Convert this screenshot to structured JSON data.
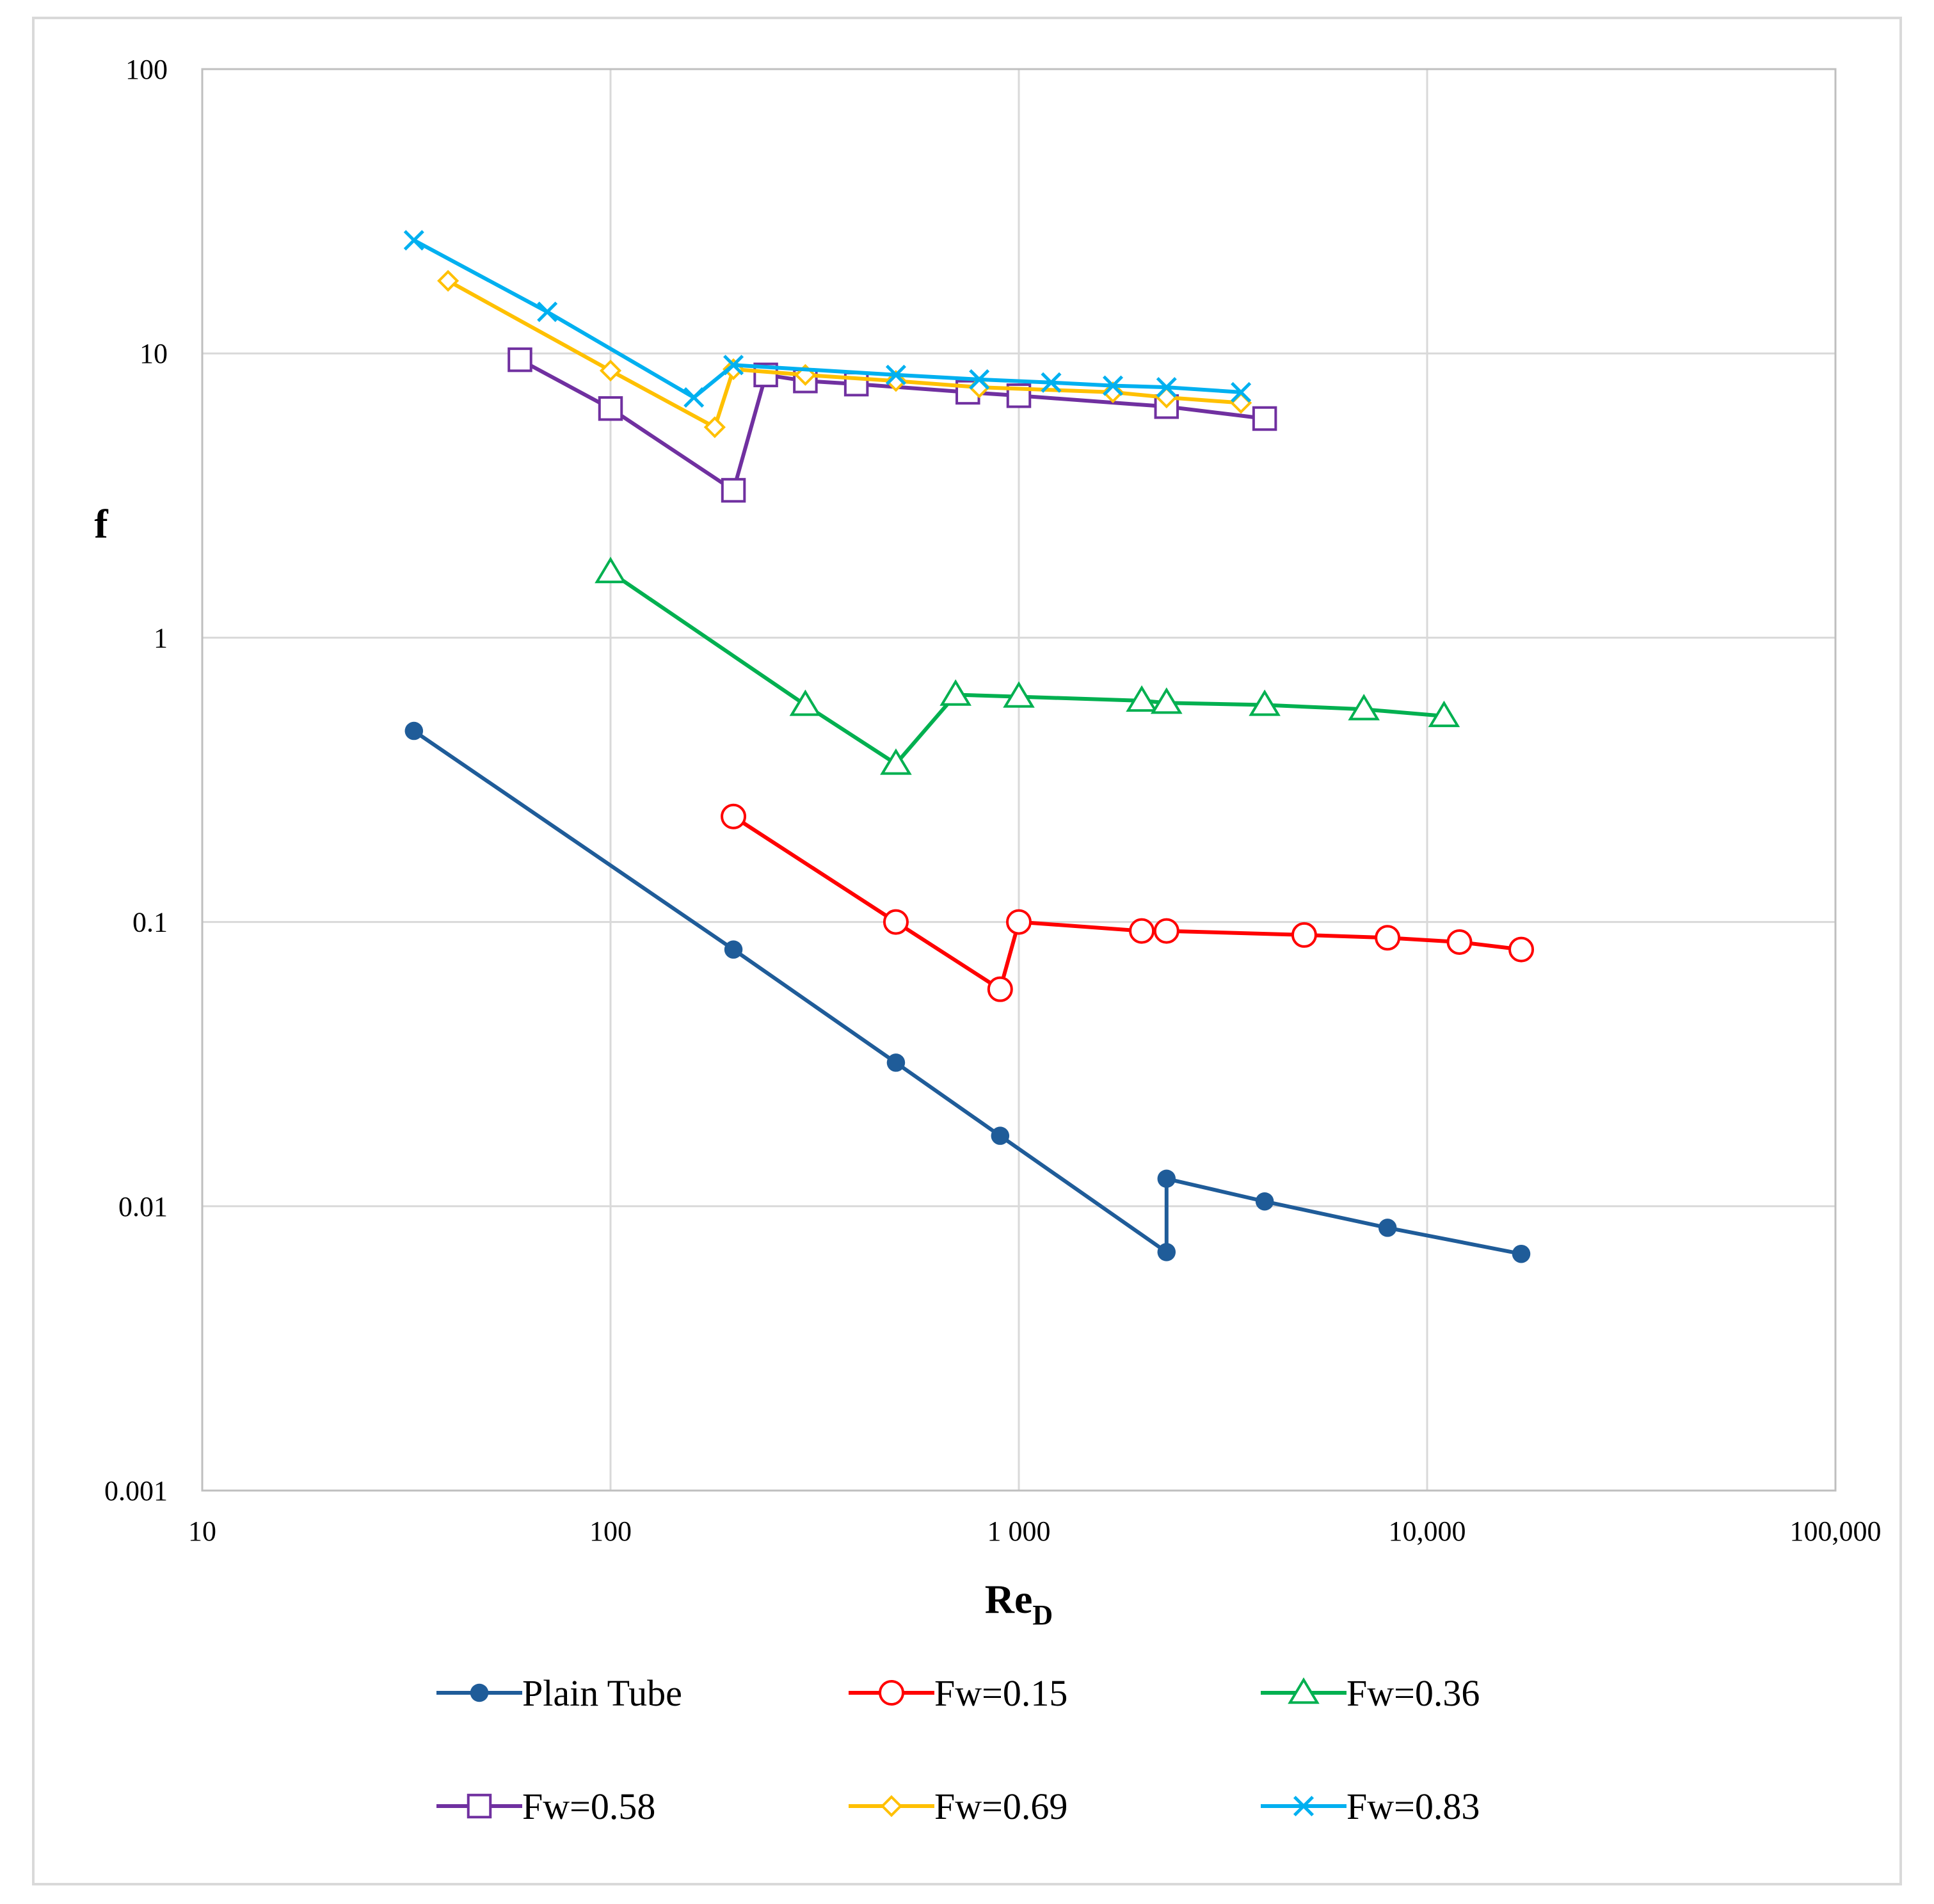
{
  "chart_data": {
    "type": "line",
    "title": "",
    "xlabel_main": "Re",
    "xlabel_sub": "D",
    "ylabel": "f",
    "xscale": "log",
    "yscale": "log",
    "xlim": [
      10,
      100000
    ],
    "ylim": [
      0.001,
      100
    ],
    "grid": true,
    "legend_position": "bottom",
    "x_ticks": [
      {
        "value": 10,
        "label": "10"
      },
      {
        "value": 100,
        "label": "100"
      },
      {
        "value": 1000,
        "label": "1 000"
      },
      {
        "value": 10000,
        "label": "10,000"
      },
      {
        "value": 100000,
        "label": "100,000"
      }
    ],
    "y_ticks": [
      {
        "value": 0.001,
        "label": "0.001"
      },
      {
        "value": 0.01,
        "label": "0.01"
      },
      {
        "value": 0.1,
        "label": "0.1"
      },
      {
        "value": 1,
        "label": "1"
      },
      {
        "value": 10,
        "label": "10"
      },
      {
        "value": 100,
        "label": "100"
      }
    ],
    "series": [
      {
        "name": "Plain Tube",
        "color": "#1f5c99",
        "marker": "filled-circle",
        "points": [
          [
            33,
            0.47
          ],
          [
            200,
            0.08
          ],
          [
            500,
            0.032
          ],
          [
            900,
            0.0177
          ],
          [
            2300,
            0.0069
          ],
          [
            2300,
            0.0125
          ],
          [
            4000,
            0.0104
          ],
          [
            8000,
            0.0084
          ],
          [
            17000,
            0.0068
          ]
        ]
      },
      {
        "name": "Fw=0.15",
        "color": "#ff0000",
        "marker": "open-circle",
        "points": [
          [
            200,
            0.235
          ],
          [
            500,
            0.1
          ],
          [
            900,
            0.058
          ],
          [
            1000,
            0.1
          ],
          [
            2000,
            0.093
          ],
          [
            2300,
            0.093
          ],
          [
            5000,
            0.09
          ],
          [
            8000,
            0.088
          ],
          [
            12000,
            0.085
          ],
          [
            17000,
            0.08
          ]
        ]
      },
      {
        "name": "Fw=0.36",
        "color": "#00b050",
        "marker": "open-triangle",
        "points": [
          [
            100,
            1.7
          ],
          [
            300,
            0.58
          ],
          [
            500,
            0.36
          ],
          [
            700,
            0.63
          ],
          [
            1000,
            0.62
          ],
          [
            2000,
            0.6
          ],
          [
            2300,
            0.59
          ],
          [
            4000,
            0.58
          ],
          [
            7000,
            0.56
          ],
          [
            11000,
            0.53
          ]
        ]
      },
      {
        "name": "Fw=0.58",
        "color": "#7030a0",
        "marker": "open-square",
        "points": [
          [
            60,
            9.5
          ],
          [
            100,
            6.4
          ],
          [
            200,
            3.3
          ],
          [
            240,
            8.4
          ],
          [
            300,
            8.0
          ],
          [
            400,
            7.8
          ],
          [
            750,
            7.3
          ],
          [
            1000,
            7.1
          ],
          [
            2300,
            6.5
          ],
          [
            4000,
            5.9
          ]
        ]
      },
      {
        "name": "Fw=0.69",
        "color": "#ffc000",
        "marker": "open-diamond",
        "points": [
          [
            40,
            18
          ],
          [
            100,
            8.7
          ],
          [
            180,
            5.5
          ],
          [
            200,
            8.8
          ],
          [
            300,
            8.4
          ],
          [
            500,
            8.0
          ],
          [
            800,
            7.6
          ],
          [
            1700,
            7.3
          ],
          [
            2300,
            7.0
          ],
          [
            3500,
            6.7
          ]
        ]
      },
      {
        "name": "Fw=0.83",
        "color": "#00b0f0",
        "marker": "x",
        "points": [
          [
            33,
            25
          ],
          [
            70,
            14
          ],
          [
            160,
            7.0
          ],
          [
            200,
            9.1
          ],
          [
            500,
            8.4
          ],
          [
            800,
            8.1
          ],
          [
            1200,
            7.9
          ],
          [
            1700,
            7.7
          ],
          [
            2300,
            7.6
          ],
          [
            3500,
            7.3
          ]
        ]
      }
    ]
  }
}
